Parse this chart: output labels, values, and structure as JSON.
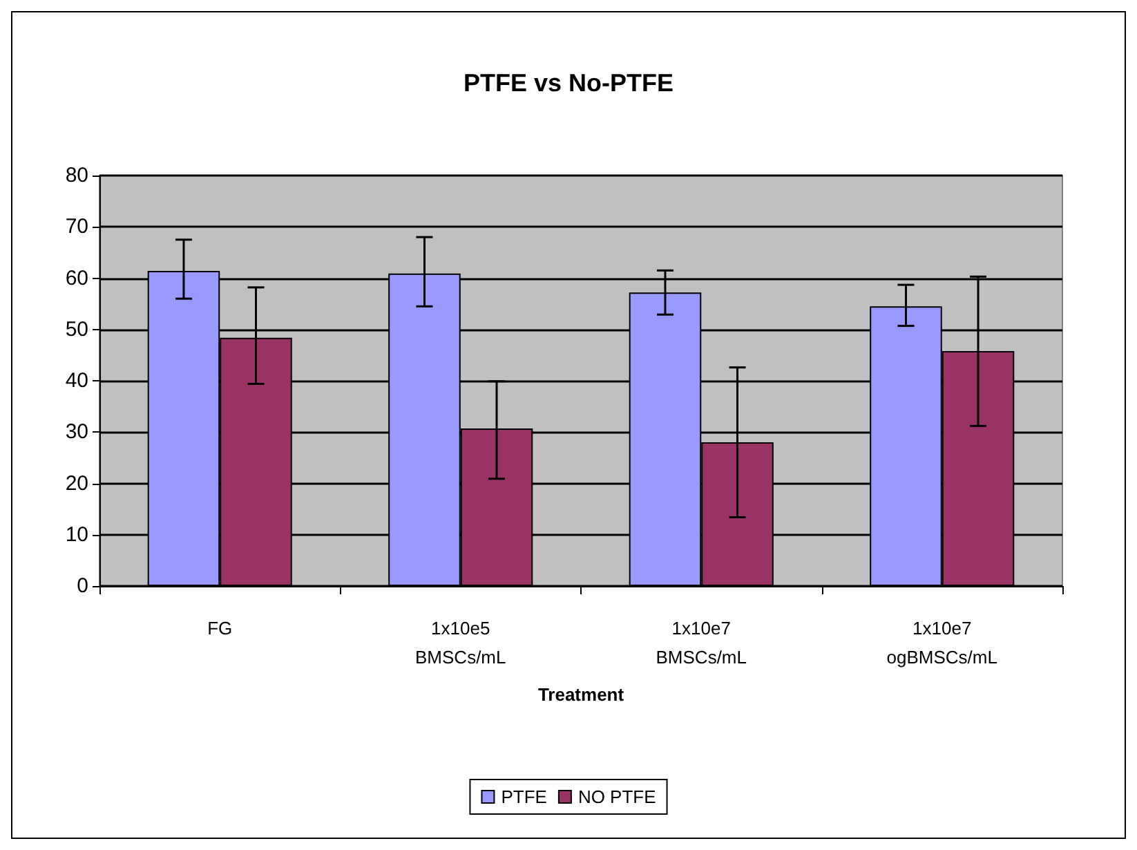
{
  "chart_data": {
    "type": "bar",
    "title": "PTFE vs No-PTFE",
    "xlabel": "Treatment",
    "categories": [
      "FG",
      "1x10e5\nBMSCs/mL",
      "1x10e7\nBMSCs/mL",
      "1x10e7\nogBMSCs/mL"
    ],
    "series": [
      {
        "name": "PTFE",
        "color": "#9999ff",
        "values": [
          61.4,
          60.9,
          57.2,
          54.5
        ],
        "errors": [
          [
            56.0,
            67.5
          ],
          [
            54.5,
            68.0
          ],
          [
            52.9,
            61.5
          ],
          [
            50.7,
            58.7
          ]
        ]
      },
      {
        "name": "NO PTFE",
        "color": "#993366",
        "values": [
          48.4,
          30.7,
          28.0,
          45.8
        ],
        "errors": [
          [
            39.4,
            58.2
          ],
          [
            20.9,
            39.9
          ],
          [
            13.4,
            42.6
          ],
          [
            31.2,
            60.3
          ]
        ]
      }
    ],
    "ylim": [
      0,
      80
    ],
    "yticks": [
      0,
      10,
      20,
      30,
      40,
      50,
      60,
      70,
      80
    ],
    "grid": "y",
    "legend": "bottom"
  }
}
